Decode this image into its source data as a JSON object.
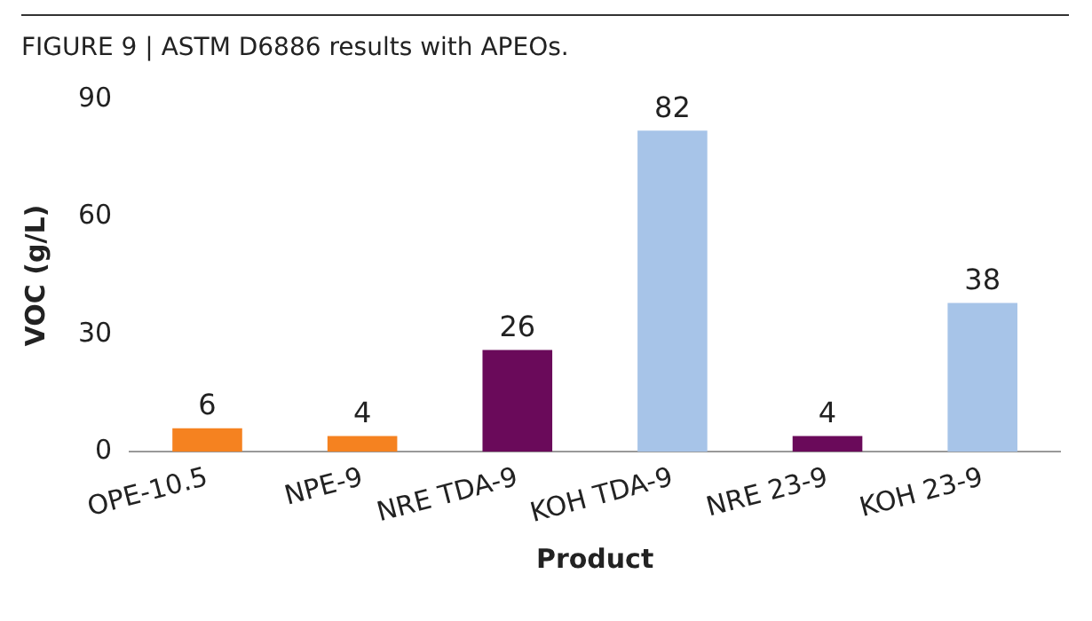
{
  "chart_data": {
    "type": "bar",
    "title": "FIGURE 9 | ASTM D6886 results with APEOs.",
    "xlabel": "Product",
    "ylabel": "VOC (g/L)",
    "categories": [
      "OPE-10.5",
      "NPE-9",
      "NRE TDA-9",
      "KOH TDA-9",
      "NRE 23-9",
      "KOH 23-9"
    ],
    "values": [
      6,
      4,
      26,
      82,
      4,
      38
    ],
    "colors": [
      "#f58220",
      "#f58220",
      "#6a0a5a",
      "#a7c4e8",
      "#6a0a5a",
      "#a7c4e8"
    ],
    "ylim": [
      0,
      90
    ],
    "yticks": [
      0,
      30,
      60,
      90
    ],
    "grid": false,
    "legend": false,
    "data_labels": true
  }
}
